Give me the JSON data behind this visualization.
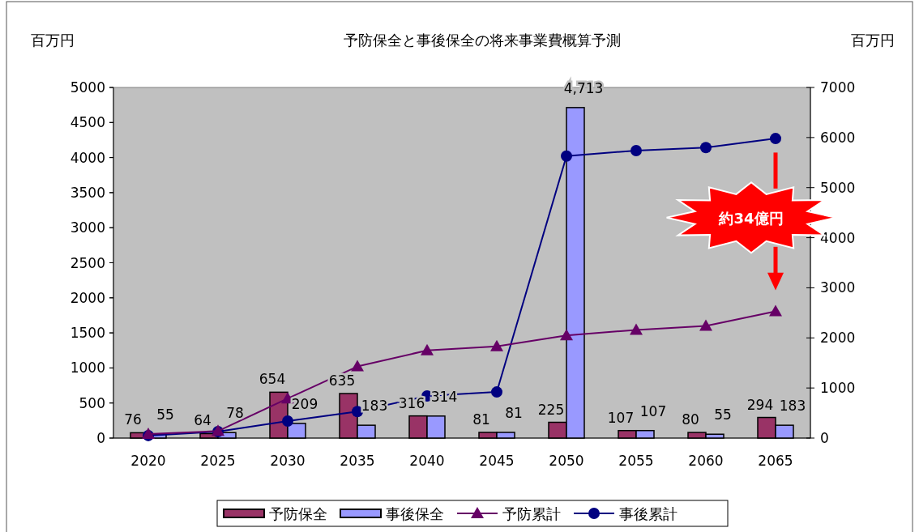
{
  "chart_data": {
    "type": "bar",
    "title": "予防保全と事後保全の将来事業費概算予測",
    "ylabel": "百万円",
    "y2label": "百万円",
    "categories": [
      "2020",
      "2025",
      "2030",
      "2035",
      "2040",
      "2045",
      "2050",
      "2055",
      "2060",
      "2065"
    ],
    "series": [
      {
        "name": "予防保全",
        "color": "#993366",
        "values": [
          76,
          64,
          654,
          635,
          316,
          81,
          225,
          107,
          80,
          294
        ],
        "value_labels": [
          "76",
          "64",
          "654",
          "635",
          "316",
          "81",
          "225",
          "107",
          "80",
          "294"
        ]
      },
      {
        "name": "事後保全",
        "color": "#9999ff",
        "values": [
          55,
          78,
          209,
          183,
          314,
          81,
          4713,
          107,
          55,
          183
        ],
        "value_labels": [
          "55",
          "78",
          "209",
          "183",
          "314",
          "81",
          "4,713",
          "107",
          "55",
          "183"
        ]
      },
      {
        "name": "予防累計",
        "type": "line",
        "axis": "y2",
        "color": "#660066",
        "marker": "triangle",
        "values": [
          80,
          140,
          790,
          1430,
          1750,
          1830,
          2050,
          2160,
          2240,
          2530
        ]
      },
      {
        "name": "事後累計",
        "type": "line",
        "axis": "y2",
        "color": "#000080",
        "marker": "circle",
        "values": [
          50,
          130,
          340,
          530,
          840,
          920,
          5630,
          5740,
          5800,
          5980
        ]
      }
    ],
    "ylim": [
      0,
      5000
    ],
    "yticks": [
      0,
      500,
      1000,
      1500,
      2000,
      2500,
      3000,
      3500,
      4000,
      4500,
      5000
    ],
    "y2lim": [
      0,
      7000
    ],
    "y2ticks": [
      0,
      1000,
      2000,
      3000,
      4000,
      5000,
      6000,
      7000
    ],
    "grid": false,
    "legend": "bottom",
    "annotations": [
      "約34億円"
    ]
  }
}
